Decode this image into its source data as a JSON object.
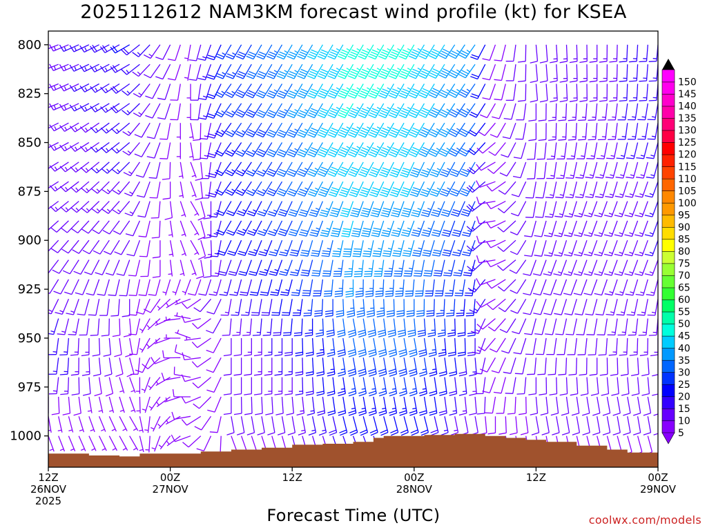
{
  "page": {
    "title": "2025112612 NAM3KM forecast wind profile (kt) for KSEA",
    "x_axis_title": "Forecast Time (UTC)",
    "credit": "coolwx.com/models"
  },
  "chart_data": {
    "type": "wind-barb-time-height",
    "title": "2025112612 NAM3KM forecast wind profile (kt) for KSEA",
    "xlabel": "Forecast Time (UTC)",
    "ylabel": "",
    "units": "kt",
    "x_range_hours": [
      0,
      60
    ],
    "y_range_hPa": [
      793,
      1016
    ],
    "y_ticks": [
      800,
      825,
      850,
      875,
      900,
      925,
      950,
      975,
      1000
    ],
    "x_ticks": [
      {
        "hour": 0,
        "lines": [
          "12Z",
          "26NOV",
          "2025"
        ]
      },
      {
        "hour": 12,
        "lines": [
          "00Z",
          "27NOV"
        ]
      },
      {
        "hour": 24,
        "lines": [
          "12Z"
        ]
      },
      {
        "hour": 36,
        "lines": [
          "00Z",
          "28NOV"
        ]
      },
      {
        "hour": 48,
        "lines": [
          "12Z"
        ]
      },
      {
        "hour": 60,
        "lines": [
          "00Z",
          "29NOV"
        ]
      }
    ],
    "levels_hPa": [
      800,
      810,
      820,
      830,
      840,
      850,
      860,
      870,
      880,
      890,
      900,
      910,
      920,
      930,
      940,
      950,
      960,
      970,
      980,
      990,
      1000,
      1010
    ],
    "time_step_hours": 1,
    "wind_key_points": [
      {
        "hour": 0,
        "speed": [
          12,
          12,
          12,
          12,
          12,
          12,
          12,
          12,
          12,
          12,
          12,
          12,
          12,
          14,
          16,
          18,
          18,
          16,
          10,
          6,
          4,
          2
        ],
        "direction": [
          250,
          250,
          250,
          250,
          245,
          245,
          240,
          240,
          235,
          230,
          225,
          220,
          215,
          210,
          200,
          190,
          190,
          190,
          180,
          170,
          160,
          160
        ]
      },
      {
        "hour": 8,
        "speed": [
          20,
          18,
          18,
          18,
          16,
          16,
          16,
          14,
          14,
          12,
          12,
          10,
          10,
          10,
          8,
          8,
          8,
          6,
          4,
          4,
          4,
          2
        ],
        "direction": [
          240,
          240,
          235,
          235,
          230,
          230,
          225,
          220,
          220,
          215,
          210,
          200,
          190,
          180,
          175,
          170,
          165,
          160,
          160,
          150,
          150,
          150
        ]
      },
      {
        "hour": 14,
        "speed": [
          6,
          6,
          6,
          6,
          5,
          5,
          5,
          5,
          5,
          5,
          5,
          5,
          5,
          6,
          6,
          6,
          8,
          8,
          8,
          8,
          8,
          6
        ],
        "direction": [
          190,
          190,
          180,
          180,
          170,
          170,
          160,
          160,
          150,
          150,
          150,
          160,
          200,
          250,
          280,
          290,
          290,
          280,
          270,
          260,
          250,
          250
        ]
      },
      {
        "hour": 18,
        "speed": [
          25,
          25,
          25,
          25,
          24,
          22,
          22,
          22,
          20,
          20,
          20,
          18,
          16,
          14,
          12,
          10,
          10,
          10,
          10,
          10,
          8,
          6
        ],
        "direction": [
          210,
          210,
          215,
          215,
          215,
          215,
          215,
          215,
          210,
          210,
          205,
          200,
          195,
          190,
          185,
          180,
          180,
          180,
          180,
          170,
          160,
          160
        ]
      },
      {
        "hour": 24,
        "speed": [
          35,
          35,
          34,
          33,
          32,
          32,
          30,
          30,
          28,
          28,
          26,
          25,
          24,
          22,
          20,
          18,
          16,
          14,
          12,
          12,
          10,
          8
        ],
        "direction": [
          210,
          210,
          210,
          210,
          210,
          210,
          210,
          210,
          205,
          205,
          200,
          200,
          195,
          190,
          185,
          180,
          180,
          180,
          175,
          170,
          165,
          160
        ]
      },
      {
        "hour": 30,
        "speed": [
          45,
          46,
          46,
          45,
          44,
          44,
          42,
          42,
          40,
          40,
          38,
          36,
          35,
          33,
          32,
          30,
          28,
          26,
          24,
          22,
          18,
          14
        ],
        "direction": [
          210,
          210,
          210,
          210,
          210,
          210,
          210,
          205,
          200,
          195,
          190,
          185,
          180,
          175,
          170,
          170,
          170,
          170,
          170,
          165,
          160,
          160
        ]
      },
      {
        "hour": 36,
        "speed": [
          45,
          45,
          44,
          44,
          42,
          42,
          40,
          40,
          38,
          36,
          35,
          34,
          32,
          32,
          30,
          30,
          28,
          26,
          24,
          22,
          18,
          14
        ],
        "direction": [
          210,
          210,
          210,
          210,
          210,
          210,
          205,
          205,
          200,
          200,
          195,
          190,
          185,
          180,
          175,
          170,
          170,
          170,
          170,
          165,
          160,
          160
        ]
      },
      {
        "hour": 42,
        "speed": [
          35,
          35,
          34,
          33,
          32,
          32,
          30,
          30,
          28,
          26,
          25,
          24,
          24,
          22,
          20,
          18,
          16,
          14,
          12,
          10,
          8,
          6
        ],
        "direction": [
          215,
          215,
          215,
          215,
          215,
          215,
          210,
          210,
          205,
          200,
          200,
          195,
          190,
          185,
          180,
          180,
          175,
          175,
          175,
          170,
          165,
          160
        ]
      },
      {
        "hour": 44,
        "speed": [
          8,
          8,
          8,
          8,
          8,
          8,
          8,
          8,
          8,
          8,
          8,
          8,
          8,
          8,
          8,
          8,
          8,
          8,
          8,
          8,
          6,
          4
        ],
        "direction": [
          200,
          200,
          200,
          210,
          220,
          230,
          240,
          250,
          260,
          260,
          260,
          260,
          250,
          240,
          230,
          220,
          210,
          200,
          190,
          180,
          170,
          160
        ]
      },
      {
        "hour": 48,
        "speed": [
          12,
          12,
          12,
          12,
          12,
          12,
          12,
          12,
          12,
          12,
          12,
          12,
          12,
          12,
          12,
          12,
          12,
          12,
          10,
          10,
          8,
          6
        ],
        "direction": [
          175,
          175,
          175,
          180,
          180,
          185,
          185,
          190,
          190,
          195,
          195,
          200,
          200,
          200,
          195,
          190,
          185,
          180,
          175,
          170,
          170,
          165
        ]
      },
      {
        "hour": 54,
        "speed": [
          14,
          14,
          14,
          14,
          14,
          14,
          14,
          14,
          14,
          14,
          14,
          14,
          12,
          12,
          12,
          12,
          12,
          12,
          10,
          10,
          8,
          6
        ],
        "direction": [
          180,
          180,
          180,
          185,
          185,
          190,
          195,
          195,
          200,
          200,
          200,
          200,
          200,
          195,
          190,
          185,
          180,
          175,
          170,
          170,
          165,
          160
        ]
      },
      {
        "hour": 60,
        "speed": [
          16,
          16,
          16,
          16,
          16,
          16,
          15,
          15,
          15,
          15,
          15,
          14,
          14,
          14,
          14,
          14,
          12,
          12,
          10,
          10,
          8,
          6
        ],
        "direction": [
          185,
          185,
          185,
          190,
          190,
          195,
          195,
          200,
          200,
          200,
          200,
          200,
          195,
          190,
          185,
          180,
          175,
          175,
          170,
          170,
          165,
          160
        ]
      }
    ],
    "terrain_surface_hPa": [
      [
        0,
        1009
      ],
      [
        4,
        1010
      ],
      [
        7,
        1010.5
      ],
      [
        9,
        1009
      ],
      [
        12,
        1009
      ],
      [
        15,
        1008
      ],
      [
        18,
        1007
      ],
      [
        21,
        1006
      ],
      [
        24,
        1004.5
      ],
      [
        27,
        1004
      ],
      [
        30,
        1003
      ],
      [
        32,
        1001
      ],
      [
        33,
        1000
      ],
      [
        35,
        1000
      ],
      [
        37,
        999.5
      ],
      [
        39,
        999.5
      ],
      [
        40,
        999
      ],
      [
        43,
        1000
      ],
      [
        45,
        1001
      ],
      [
        47,
        1002
      ],
      [
        49,
        1003
      ],
      [
        52,
        1005
      ],
      [
        55,
        1007
      ],
      [
        57,
        1008.5
      ],
      [
        60,
        1010
      ]
    ],
    "terrain_color": "#a0522d",
    "colorbar": {
      "min": 5,
      "max": 150,
      "step": 5,
      "labels": [
        150,
        145,
        140,
        135,
        130,
        125,
        120,
        115,
        110,
        105,
        100,
        95,
        90,
        85,
        80,
        75,
        70,
        65,
        60,
        55,
        50,
        45,
        40,
        35,
        30,
        25,
        20,
        15,
        10,
        5
      ],
      "colors": [
        "#8800ff",
        "#6600ff",
        "#3300ff",
        "#0000ff",
        "#0033ff",
        "#0066ff",
        "#0099ff",
        "#00ccff",
        "#00ffdd",
        "#00ffaa",
        "#00ff66",
        "#33ff33",
        "#66ff33",
        "#99ff33",
        "#ccff33",
        "#ffff00",
        "#ffdd00",
        "#ffbb00",
        "#ff9900",
        "#ff8800",
        "#ff6600",
        "#ff4400",
        "#ff2200",
        "#ff0000",
        "#ff0044",
        "#ff0077",
        "#ff00aa",
        "#ff00cc",
        "#ff00ee",
        "#ff00ff"
      ]
    }
  }
}
